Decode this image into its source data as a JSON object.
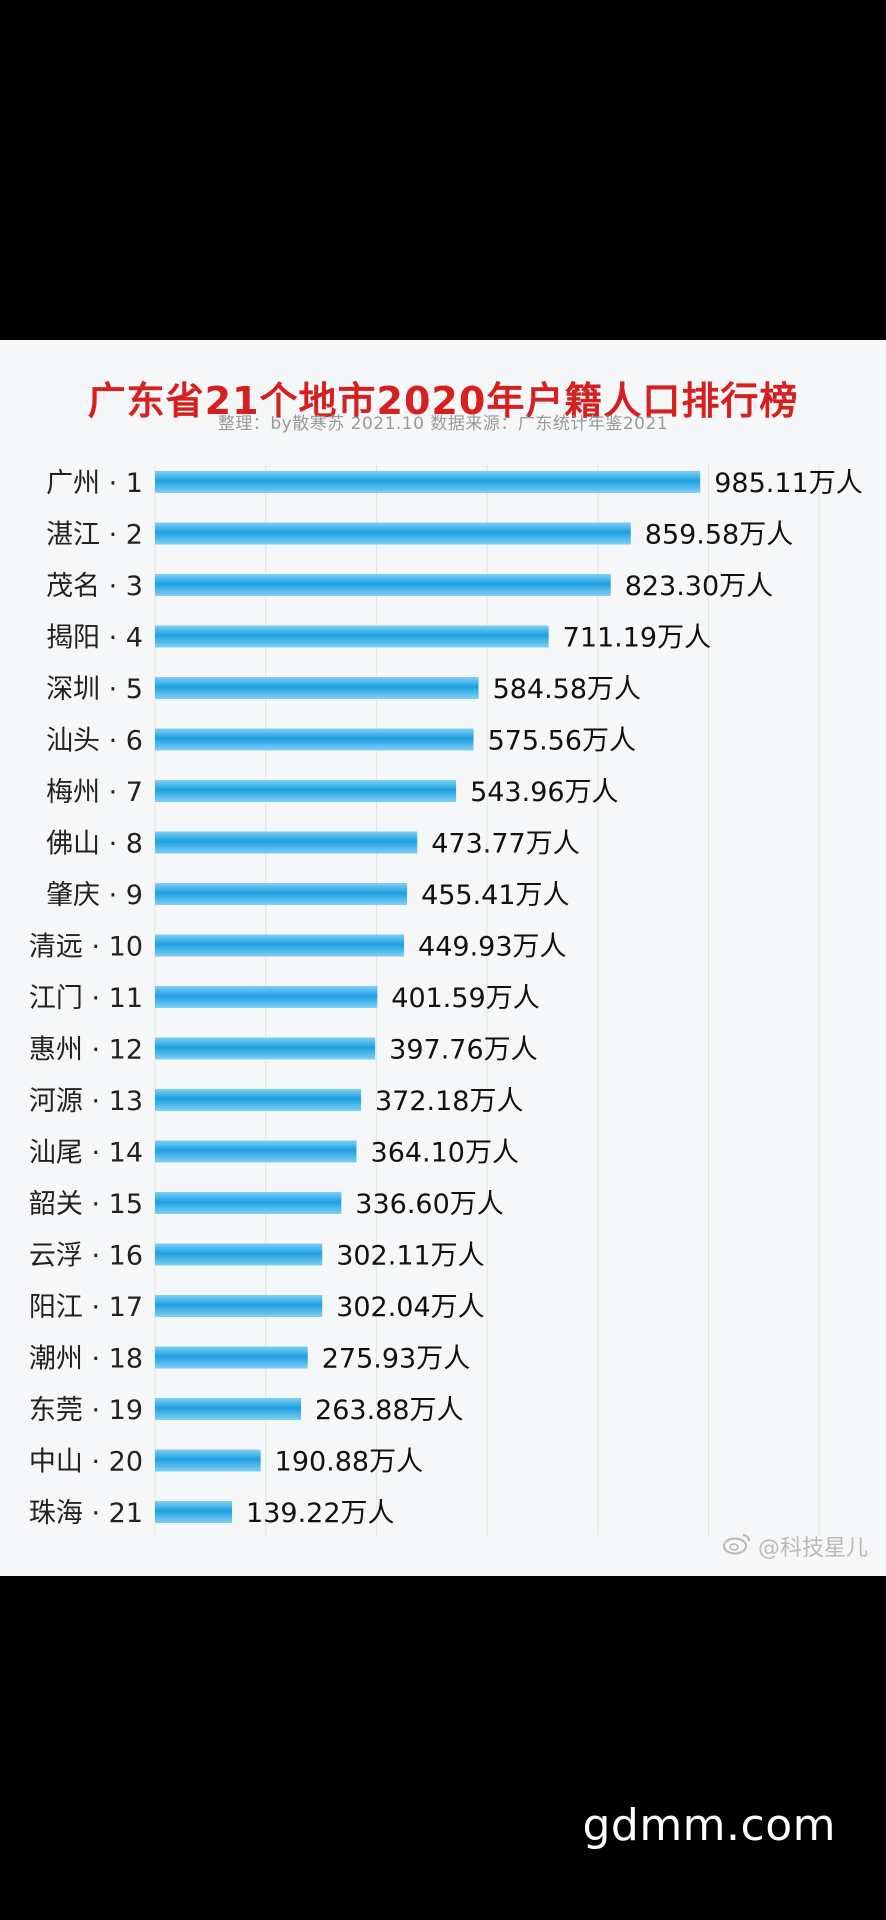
{
  "colors": {
    "title": "#d61f1f",
    "bar": "#1e9fe0",
    "bar_light": "#7fd0f6",
    "watermark": "#b9b9b9"
  },
  "subtitle": "整理：by散寒苏  2021.10  数据来源：广东统计年鉴2021",
  "watermark": {
    "icon": "weibo-icon",
    "text": "@科技星儿"
  },
  "site_brand": "gdmm.com",
  "chart_data": {
    "type": "bar",
    "orientation": "horizontal",
    "title": "广东省21个地市2020年户籍人口排行榜",
    "unit": "万人",
    "grid": true,
    "categories": [
      "广州 · 1",
      "湛江 · 2",
      "茂名 · 3",
      "揭阳 · 4",
      "深圳 · 5",
      "汕头 · 6",
      "梅州 · 7",
      "佛山 · 8",
      "肇庆 · 9",
      "清远 · 10",
      "江门 · 11",
      "惠州 · 12",
      "河源 · 13",
      "汕尾 · 14",
      "韶关 · 15",
      "云浮 · 16",
      "阳江 · 17",
      "潮州 · 18",
      "东莞 · 19",
      "中山 · 20",
      "珠海 · 21"
    ],
    "values": [
      985.11,
      859.58,
      823.3,
      711.19,
      584.58,
      575.56,
      543.96,
      473.77,
      455.41,
      449.93,
      401.59,
      397.76,
      372.18,
      364.1,
      336.6,
      302.11,
      302.04,
      275.93,
      263.88,
      190.88,
      139.22
    ],
    "value_labels": [
      "985.11万人",
      "859.58万人",
      "823.30万人",
      "711.19万人",
      "584.58万人",
      "575.56万人",
      "543.96万人",
      "473.77万人",
      "455.41万人",
      "449.93万人",
      "401.59万人",
      "397.76万人",
      "372.18万人",
      "364.10万人",
      "336.60万人",
      "302.11万人",
      "302.04万人",
      "275.93万人",
      "263.88万人",
      "190.88万人",
      "139.22万人"
    ],
    "xlim": [
      0,
      1200
    ]
  }
}
